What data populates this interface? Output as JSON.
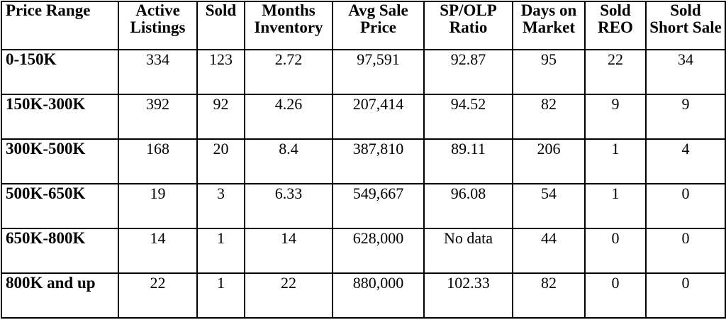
{
  "headers": [
    [
      "Price Range"
    ],
    [
      "Active",
      "Listings"
    ],
    [
      "Sold"
    ],
    [
      "Months",
      "Inventory"
    ],
    [
      "Avg Sale",
      "Price"
    ],
    [
      "SP/OLP",
      "Ratio"
    ],
    [
      "Days on",
      "Market"
    ],
    [
      "Sold",
      "REO"
    ],
    [
      "Sold",
      "Short Sale"
    ]
  ],
  "rows": [
    [
      "0-150K",
      "334",
      "123",
      "2.72",
      "97,591",
      "92.87",
      "95",
      "22",
      "34"
    ],
    [
      "150K-300K",
      "392",
      "92",
      "4.26",
      "207,414",
      "94.52",
      "82",
      "9",
      "9"
    ],
    [
      "300K-500K",
      "168",
      "20",
      "8.4",
      "387,810",
      "89.11",
      "206",
      "1",
      "4"
    ],
    [
      "500K-650K",
      "19",
      "3",
      "6.33",
      "549,667",
      "96.08",
      "54",
      "1",
      "0"
    ],
    [
      "650K-800K",
      "14",
      "1",
      "14",
      "628,000",
      "No data",
      "44",
      "0",
      "0"
    ],
    [
      "800K and up",
      "22",
      "1",
      "22",
      "880,000",
      "102.33",
      "82",
      "0",
      "0"
    ]
  ]
}
